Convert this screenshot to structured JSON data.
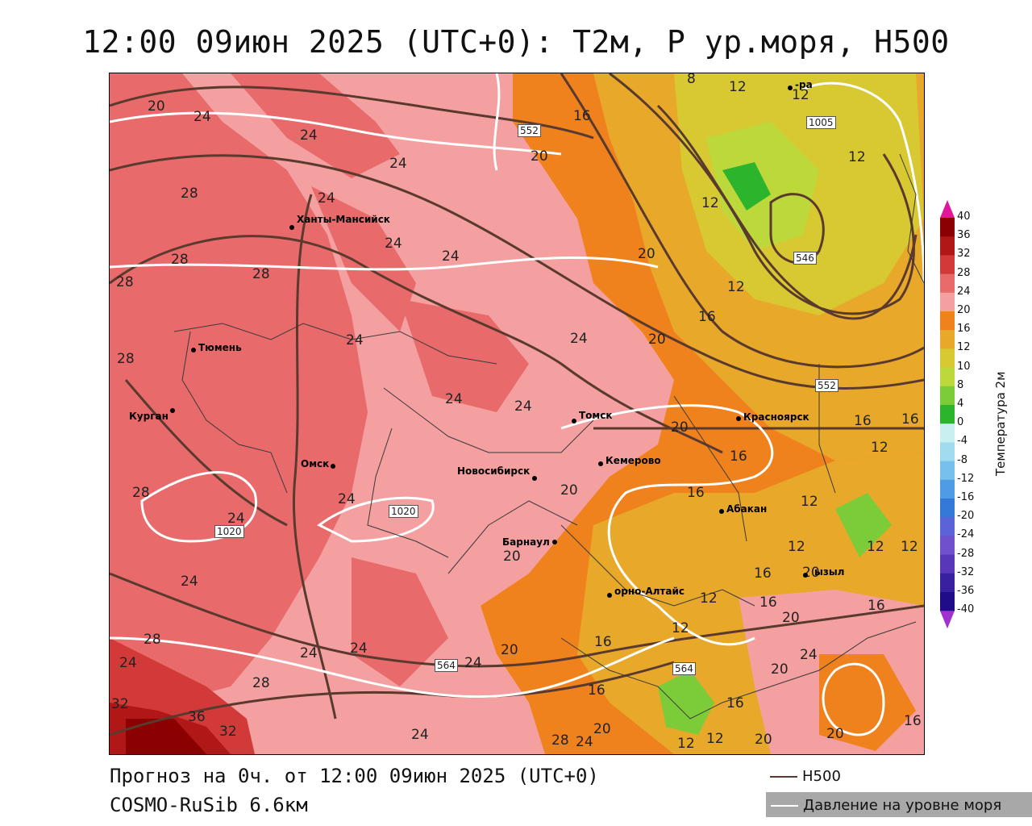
{
  "title": "12:00 09июн 2025 (UTC+0): T2м, P ур.моря, H500",
  "footer": {
    "line1": "Прогноз на 0ч. от 12:00 09июн 2025 (UTC+0)",
    "line2": "COSMO-RuSib 6.6км"
  },
  "legend": {
    "h500_label": "H500",
    "h500_color": "#5a3a2e",
    "pressure_label": "Давление на уровне моря",
    "pressure_color": "#ffffff"
  },
  "colorbar": {
    "title": "Температура 2м",
    "levels": [
      "40",
      "36",
      "32",
      "28",
      "24",
      "20",
      "16",
      "12",
      "10",
      "8",
      "4",
      "0",
      "-4",
      "-8",
      "-12",
      "-16",
      "-20",
      "-24",
      "-28",
      "-32",
      "-36",
      "-40"
    ],
    "colors": [
      "#8b0000",
      "#b01818",
      "#d23a3a",
      "#e86a6a",
      "#f4a0a0",
      "#f0821e",
      "#e8a82a",
      "#d8c832",
      "#bcd83a",
      "#7ccc3a",
      "#2cb42c",
      "#c8f0f0",
      "#a0dcf0",
      "#78c0ec",
      "#509ce4",
      "#3478d8",
      "#5a64d8",
      "#7050cc",
      "#5838b8",
      "#3820a0",
      "#200c88"
    ],
    "top_color": "#e0169c",
    "bottom_color": "#a030d0"
  },
  "cities": [
    {
      "name": "Ханты-Мансийск"
    },
    {
      "name": "Тюмень"
    },
    {
      "name": "Курган"
    },
    {
      "name": "Омск"
    },
    {
      "name": "Новосибирск"
    },
    {
      "name": "Томск"
    },
    {
      "name": "Кемерово"
    },
    {
      "name": "Барнаул"
    },
    {
      "name": "Красноярск"
    },
    {
      "name": "Абакан"
    },
    {
      "name": "орно-Алтайс"
    },
    {
      "name": "ызыл"
    },
    {
      "name": "-ра"
    }
  ],
  "temp_labels": [
    "20",
    "24",
    "24",
    "24",
    "24",
    "28",
    "24",
    "28",
    "28",
    "24",
    "24",
    "24",
    "24",
    "28",
    "28",
    "24",
    "24",
    "24",
    "24",
    "28",
    "24",
    "24",
    "24",
    "28",
    "28",
    "32",
    "36",
    "32",
    "24",
    "28",
    "24",
    "20",
    "16",
    "16",
    "20",
    "20",
    "20",
    "20",
    "20",
    "20",
    "16",
    "16",
    "16",
    "16",
    "16",
    "16",
    "16",
    "12",
    "12",
    "12",
    "12",
    "12",
    "12",
    "12",
    "12",
    "12",
    "12",
    "12",
    "12",
    "12",
    "16",
    "16",
    "16",
    "20",
    "20",
    "20",
    "20",
    "24",
    "20",
    "20",
    "16",
    "8",
    "12",
    "24"
  ],
  "h500_labels": [
    "552",
    "546",
    "552",
    "564",
    "564"
  ],
  "pressure_labels": [
    "1005",
    "1020",
    "1020"
  ]
}
